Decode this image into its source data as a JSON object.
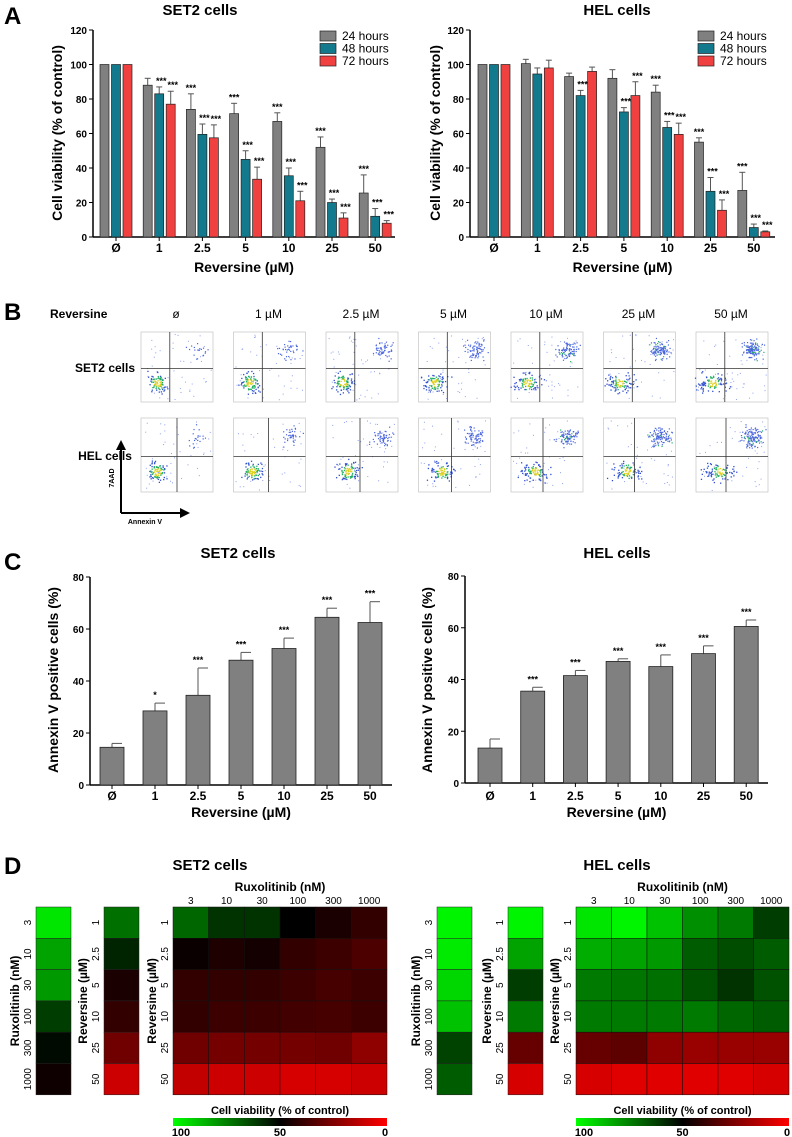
{
  "panels": [
    "A",
    "B",
    "C",
    "D"
  ],
  "colors": {
    "h24": "#808080",
    "h48": "#127a8c",
    "h72": "#f04040",
    "bar_c": "#808080",
    "heat_high": "#00ff00",
    "heat_mid": "#000000",
    "heat_low": "#ff0000"
  },
  "chart_data": [
    {
      "panel": "A",
      "type": "bar",
      "title": "SET2 cells",
      "xlabel": "Reversine (µM)",
      "ylabel": "Cell viability (% of control)",
      "ylim": [
        0,
        120
      ],
      "yticks": [
        "0",
        "20",
        "40",
        "60",
        "80",
        "100",
        "120"
      ],
      "categories": [
        "Ø",
        "1",
        "2.5",
        "5",
        "10",
        "25",
        "50"
      ],
      "legend_position": "top-right",
      "series": [
        {
          "name": "24 hours",
          "values": [
            100,
            88,
            74,
            71.5,
            67,
            52,
            25.5
          ],
          "errors": [
            0,
            4,
            9,
            6,
            5,
            6,
            10.5
          ],
          "sig": [
            "",
            "",
            "***",
            "***",
            "***",
            "***",
            "***"
          ]
        },
        {
          "name": "48 hours",
          "values": [
            100,
            83,
            59.5,
            45,
            35.5,
            20,
            12
          ],
          "errors": [
            0,
            4,
            6,
            5,
            4.5,
            2,
            4.5
          ],
          "sig": [
            "",
            "***",
            "***",
            "***",
            "***",
            "***",
            "***"
          ]
        },
        {
          "name": "72 hours",
          "values": [
            100,
            77,
            57.5,
            33.5,
            21,
            11,
            8
          ],
          "errors": [
            0,
            7.5,
            7.5,
            7,
            5.5,
            3,
            1.5
          ],
          "sig": [
            "",
            "***",
            "***",
            "***",
            "***",
            "***",
            "***"
          ]
        }
      ]
    },
    {
      "panel": "A",
      "type": "bar",
      "title": "HEL cells",
      "xlabel": "Reversine (µM)",
      "ylabel": "Cell viability (% of control)",
      "ylim": [
        0,
        120
      ],
      "yticks": [
        "0",
        "20",
        "40",
        "60",
        "80",
        "100",
        "120"
      ],
      "categories": [
        "Ø",
        "1",
        "2.5",
        "5",
        "10",
        "25",
        "50"
      ],
      "legend_position": "top-right",
      "series": [
        {
          "name": "24 hours",
          "values": [
            100,
            100.5,
            93,
            92,
            84,
            55,
            27
          ],
          "errors": [
            0,
            2.5,
            2,
            5,
            4,
            2.5,
            10.5
          ],
          "sig": [
            "",
            "",
            "",
            "",
            "***",
            "***",
            "***"
          ]
        },
        {
          "name": "48 hours",
          "values": [
            100,
            94.5,
            82,
            72.5,
            63.5,
            26.5,
            5.5
          ],
          "errors": [
            0,
            3.5,
            3,
            2.5,
            3.5,
            8,
            2
          ],
          "sig": [
            "",
            "",
            "***",
            "***",
            "***",
            "***",
            "***"
          ]
        },
        {
          "name": "72 hours",
          "values": [
            100,
            98,
            96,
            82,
            59.5,
            15.5,
            3
          ],
          "errors": [
            0,
            4.5,
            2.5,
            8,
            6.5,
            6,
            0.5
          ],
          "sig": [
            "",
            "",
            "",
            "***",
            "***",
            "***",
            "***"
          ]
        }
      ]
    },
    {
      "panel": "B",
      "type": "scatter",
      "row_header": "Reversine",
      "columns": [
        "ø",
        "1 µM",
        "2.5 µM",
        "5 µM",
        "10 µM",
        "25 µM",
        "50 µM"
      ],
      "rows": [
        "SET2 cells",
        "HEL cells"
      ],
      "xlabel": "Annexin V",
      "ylabel": "7AAD"
    },
    {
      "panel": "C",
      "type": "bar",
      "title": "SET2 cells",
      "xlabel": "Reversine (µM)",
      "ylabel": "Annexin V positive cells (%)",
      "ylim": [
        0,
        80
      ],
      "yticks": [
        "0",
        "20",
        "40",
        "60",
        "80"
      ],
      "categories": [
        "Ø",
        "1",
        "2.5",
        "5",
        "10",
        "25",
        "50"
      ],
      "values": [
        14.5,
        28.5,
        34.5,
        48,
        52.5,
        64.5,
        62.5
      ],
      "errors": [
        1.5,
        3,
        10.5,
        3,
        4,
        3.5,
        8
      ],
      "sig": [
        "",
        "*",
        "***",
        "***",
        "***",
        "***",
        "***"
      ]
    },
    {
      "panel": "C",
      "type": "bar",
      "title": "HEL cells",
      "xlabel": "Reversine (µM)",
      "ylabel": "Annexin V positive cells (%)",
      "ylim": [
        0,
        80
      ],
      "yticks": [
        "0",
        "20",
        "40",
        "60",
        "80"
      ],
      "categories": [
        "Ø",
        "1",
        "2.5",
        "5",
        "10",
        "25",
        "50"
      ],
      "values": [
        13.5,
        35.5,
        41.5,
        47,
        45,
        50,
        60.5
      ],
      "errors": [
        3.5,
        1.5,
        2,
        1,
        4.5,
        3,
        2.5
      ],
      "sig": [
        "",
        "***",
        "***",
        "***",
        "***",
        "***",
        "***"
      ]
    },
    {
      "panel": "D",
      "type": "heatmap",
      "title": "SET2 cells",
      "colorbar": {
        "title": "Cell viability (% of control)",
        "ticks": [
          "100",
          "50",
          "0"
        ]
      },
      "rux_strip": {
        "label": "Ruxolitinib (nM)",
        "rows": [
          "3",
          "10",
          "30",
          "100",
          "300",
          "1000"
        ],
        "values": [
          95,
          82,
          80,
          62,
          52,
          47
        ]
      },
      "rev_strip": {
        "label": "Reversine (µM)",
        "rows": [
          "1",
          "2.5",
          "5",
          "10",
          "25",
          "50"
        ],
        "values": [
          72,
          57,
          45,
          40,
          28,
          10
        ]
      },
      "combo": {
        "xlabel": "Ruxolitinib (nM)",
        "ylabel": "Reversine (µM)",
        "cols": [
          "3",
          "10",
          "30",
          "100",
          "300",
          "1000"
        ],
        "rows": [
          "1",
          "2.5",
          "5",
          "10",
          "25",
          "50"
        ],
        "values": [
          [
            70,
            60,
            60,
            50,
            45,
            40
          ],
          [
            48,
            44,
            46,
            40,
            38,
            35
          ],
          [
            40,
            40,
            40,
            38,
            36,
            38
          ],
          [
            40,
            38,
            38,
            37,
            36,
            38
          ],
          [
            28,
            27,
            27,
            27,
            28,
            22
          ],
          [
            12,
            10,
            10,
            8,
            8,
            10
          ]
        ]
      }
    },
    {
      "panel": "D",
      "type": "heatmap",
      "title": "HEL cells",
      "colorbar": {
        "title": "Cell viability (% of control)",
        "ticks": [
          "100",
          "50",
          "0"
        ]
      },
      "rux_strip": {
        "label": "Ruxolitinib (nM)",
        "rows": [
          "3",
          "10",
          "30",
          "100",
          "300",
          "1000"
        ],
        "values": [
          98,
          96,
          92,
          88,
          63,
          68
        ]
      },
      "rev_strip": {
        "label": "Reversine (µM)",
        "rows": [
          "1",
          "2.5",
          "5",
          "10",
          "25",
          "50"
        ],
        "values": [
          98,
          82,
          62,
          74,
          30,
          8
        ]
      },
      "combo": {
        "xlabel": "Ruxolitinib (nM)",
        "ylabel": "Reversine (µM)",
        "cols": [
          "3",
          "10",
          "30",
          "100",
          "300",
          "1000"
        ],
        "rows": [
          "1",
          "2.5",
          "5",
          "10",
          "25",
          "50"
        ],
        "values": [
          [
            95,
            98,
            88,
            78,
            74,
            62
          ],
          [
            84,
            82,
            80,
            68,
            65,
            68
          ],
          [
            74,
            73,
            72,
            66,
            60,
            66
          ],
          [
            74,
            74,
            74,
            74,
            70,
            68
          ],
          [
            30,
            32,
            22,
            20,
            20,
            20
          ],
          [
            8,
            6,
            6,
            6,
            6,
            8
          ]
        ]
      }
    }
  ]
}
